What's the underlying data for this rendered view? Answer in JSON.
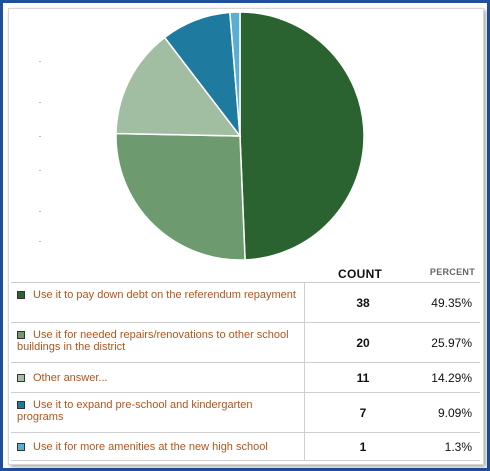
{
  "chart_data": {
    "type": "pie",
    "headers": {
      "count": "COUNT",
      "percent": "PERCENT"
    },
    "slices": [
      {
        "label": "Use it to pay down debt on the referendum repayment",
        "count": "38",
        "percent": "49.35%",
        "value": 49.35,
        "color": "#2a6230"
      },
      {
        "label": "Use it for needed repairs/renovations to other school buildings in the district",
        "count": "20",
        "percent": "25.97%",
        "value": 25.97,
        "color": "#6e9a70"
      },
      {
        "label": "Other answer...",
        "count": "11",
        "percent": "14.29%",
        "value": 14.29,
        "color": "#a2bea2"
      },
      {
        "label": "Use it to expand pre-school and kindergarten programs",
        "count": "7",
        "percent": "9.09%",
        "value": 9.09,
        "color": "#1f7aa0"
      },
      {
        "label": "Use it for more amenities at the new high school",
        "count": "1",
        "percent": "1.3%",
        "value": 1.3,
        "color": "#5aaed0"
      }
    ]
  }
}
